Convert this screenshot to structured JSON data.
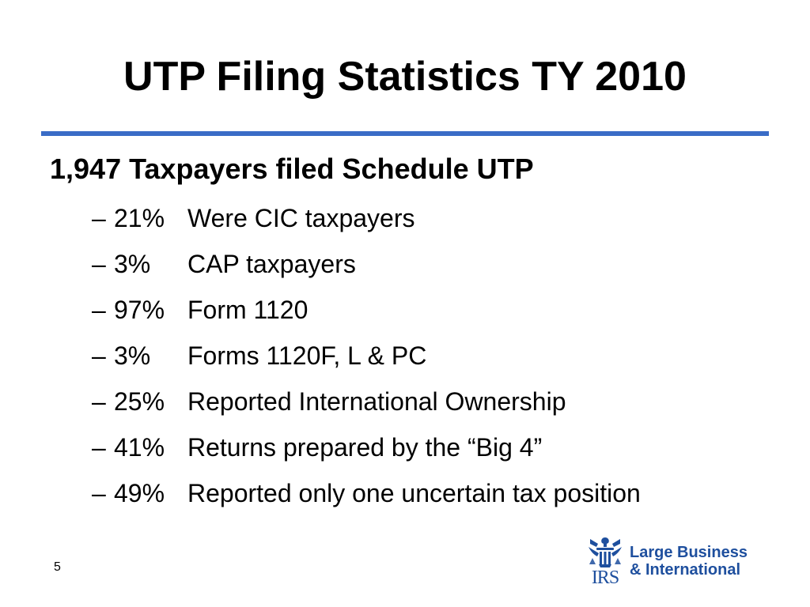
{
  "slide": {
    "title": "UTP Filing Statistics TY 2010",
    "heading": "1,947 Taxpayers filed Schedule UTP",
    "bullets": [
      {
        "dash": "–",
        "percent": "21%",
        "text": "Were CIC taxpayers"
      },
      {
        "dash": "–",
        "percent": "3%",
        "text": "CAP taxpayers"
      },
      {
        "dash": "–",
        "percent": "97%",
        "text": "Form 1120"
      },
      {
        "dash": "–",
        "percent": "3%",
        "text": "Forms 1120F, L & PC"
      },
      {
        "dash": "–",
        "percent": "25%",
        "text": "Reported International Ownership"
      },
      {
        "dash": "–",
        "percent": "41%",
        "text": "Returns prepared by the “Big 4”"
      },
      {
        "dash": "–",
        "percent": "49%",
        "text": "Reported only one uncertain tax position"
      }
    ],
    "page_number": "5",
    "logo": {
      "emblem_text": "IRS",
      "line1": "Large Business",
      "line2": "& International",
      "color": "#1e4f9e"
    },
    "accent_color": "#3a6cc6"
  }
}
